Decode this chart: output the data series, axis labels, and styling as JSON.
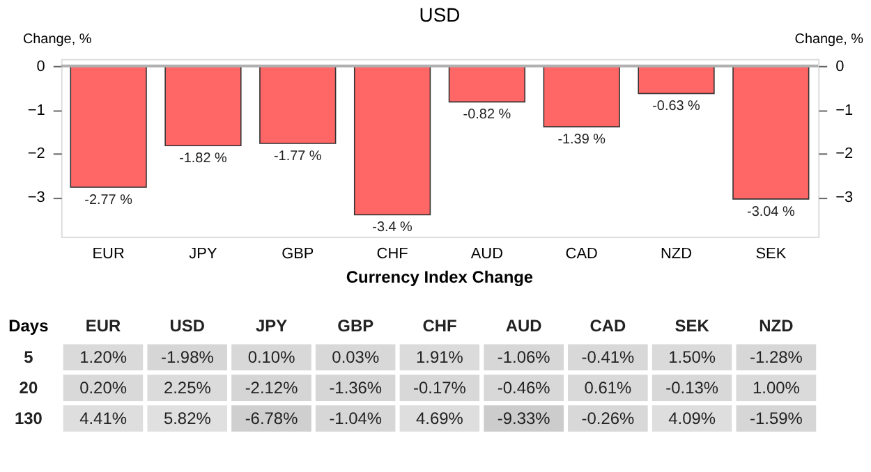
{
  "chart_data": [
    {
      "type": "bar",
      "title": "USD",
      "ylabel": "Change, %",
      "y2label": "Change, %",
      "categories": [
        "EUR",
        "JPY",
        "GBP",
        "CHF",
        "AUD",
        "CAD",
        "NZD",
        "SEK"
      ],
      "values": [
        -2.77,
        -1.82,
        -1.77,
        -3.4,
        -0.82,
        -1.39,
        -0.63,
        -3.04
      ],
      "value_labels": [
        "-2.77 %",
        "-1.82 %",
        "-1.77 %",
        "-3.4 %",
        "-0.82 %",
        "-1.39 %",
        "-0.63 %",
        "-3.04 %"
      ],
      "color": "#ff6666",
      "ylim": [
        -3.9,
        0.16
      ],
      "yticks": [
        0,
        -1,
        -2,
        -3
      ],
      "y2lim": [
        -3.9,
        0.16
      ],
      "y2ticks": [
        0,
        -1,
        -2,
        -3
      ],
      "ref_lines": [
        {
          "axis": "y",
          "value": 0,
          "color": "#b0b0b0"
        }
      ],
      "grid": false
    },
    {
      "type": "heatmap",
      "title": "Currency Index Change",
      "ylabel": "Days",
      "categories": [
        "EUR",
        "USD",
        "JPY",
        "GBP",
        "CHF",
        "AUD",
        "CAD",
        "SEK",
        "NZD"
      ],
      "y_categories": [
        "5",
        "20",
        "130"
      ],
      "cells": [
        [
          1.2,
          -1.98,
          0.1,
          0.03,
          1.91,
          -1.06,
          -0.41,
          1.5,
          -1.28
        ],
        [
          0.2,
          2.25,
          -2.12,
          -1.36,
          -0.17,
          -0.46,
          0.61,
          -0.13,
          1.0
        ],
        [
          4.41,
          5.82,
          -6.78,
          -1.04,
          4.69,
          -9.33,
          -0.26,
          4.09,
          -1.59
        ]
      ],
      "cell_labels": [
        [
          "1.20%",
          "-1.98%",
          "0.10%",
          "0.03%",
          "1.91%",
          "-1.06%",
          "-0.41%",
          "1.50%",
          "-1.28%"
        ],
        [
          "0.20%",
          "2.25%",
          "-2.12%",
          "-1.36%",
          "-0.17%",
          "-0.46%",
          "0.61%",
          "-0.13%",
          "1.00%"
        ],
        [
          "4.41%",
          "5.82%",
          "-6.78%",
          "-1.04%",
          "4.69%",
          "-9.33%",
          "-0.26%",
          "4.09%",
          "-1.59%"
        ]
      ],
      "colors": [
        "#cccccc",
        "#e0e0e0"
      ]
    }
  ]
}
